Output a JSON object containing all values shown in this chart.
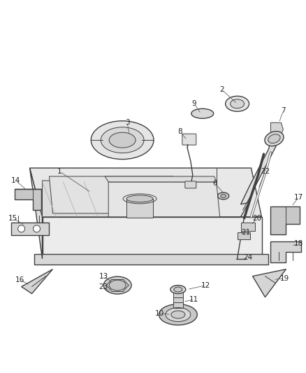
{
  "bg_color": "#ffffff",
  "lc": "#404040",
  "lc2": "#555555",
  "fig_w": 4.38,
  "fig_h": 5.33,
  "dpi": 100
}
